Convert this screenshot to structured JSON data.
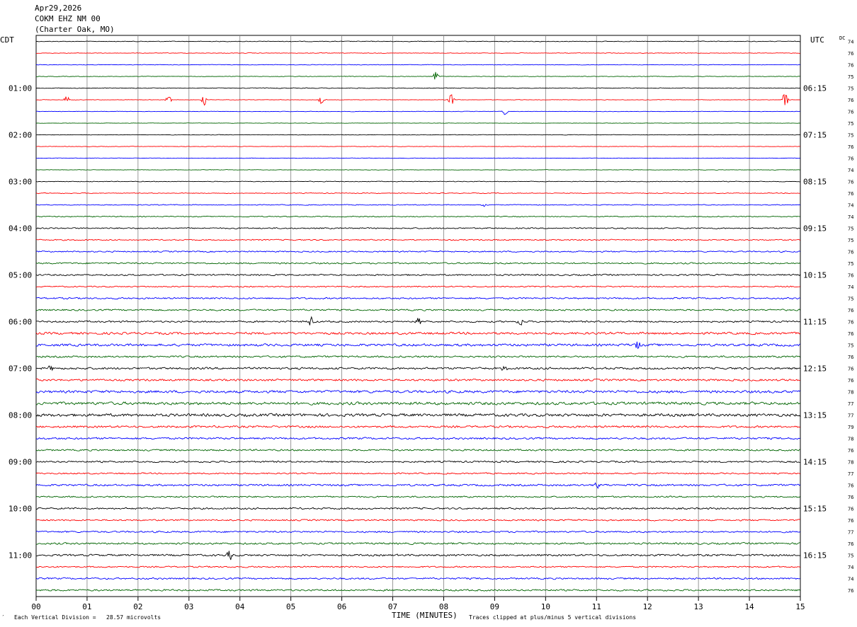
{
  "header": {
    "date": "Apr29,2026",
    "station": "COKM EHZ NM 00",
    "location": "(Charter Oak, MO)"
  },
  "axes": {
    "left_tz": "CDT",
    "right_tz": "UTC",
    "dc_label": "DC",
    "x_title": "TIME (MINUTES)"
  },
  "footer": {
    "left_mark": "′",
    "left_text": "Each Vertical Division =   28.57 microvolts",
    "right_text": "Traces clipped at plus/minus 5 vertical divisions"
  },
  "colors": {
    "line_cycle": [
      "#000000",
      "#ff0000",
      "#0000ff",
      "#006400"
    ],
    "grid": "#808080"
  },
  "chart_data": {
    "type": "line",
    "title": "",
    "xlabel": "TIME (MINUTES)",
    "x_ticks": [
      "00",
      "01",
      "02",
      "03",
      "04",
      "05",
      "06",
      "07",
      "08",
      "09",
      "10",
      "11",
      "12",
      "13",
      "14",
      "15"
    ],
    "xlim": [
      0,
      15
    ],
    "left_time_labels": [
      "01:00",
      "02:00",
      "03:00",
      "04:00",
      "05:00",
      "06:00",
      "07:00",
      "08:00",
      "09:00",
      "10:00",
      "11:00"
    ],
    "right_time_labels": [
      "06:15",
      "07:15",
      "08:15",
      "09:15",
      "10:15",
      "11:15",
      "12:15",
      "13:15",
      "14:15",
      "15:15",
      "16:15"
    ],
    "dc_offsets": [
      74,
      76,
      76,
      75,
      75,
      76,
      76,
      75,
      75,
      76,
      76,
      74,
      76,
      76,
      74,
      74,
      75,
      75,
      76,
      75,
      76,
      74,
      75,
      76,
      76,
      76,
      75,
      76,
      76,
      76,
      78,
      77,
      77,
      79,
      78,
      76,
      78,
      77,
      76,
      76,
      76,
      76,
      77,
      76,
      75,
      74,
      74,
      76
    ],
    "trace_count": 48,
    "trace_intensity": [
      0.8,
      0.7,
      0.7,
      0.7,
      0.8,
      0.6,
      0.6,
      0.5,
      0.6,
      0.6,
      0.6,
      0.6,
      0.8,
      0.9,
      1.0,
      1.1,
      1.5,
      1.4,
      1.6,
      1.8,
      1.8,
      1.5,
      1.9,
      1.9,
      2.0,
      2.7,
      2.9,
      2.2,
      2.5,
      2.4,
      3.1,
      3.4,
      3.4,
      2.5,
      2.3,
      2.0,
      2.0,
      1.7,
      2.3,
      1.8,
      2.0,
      1.8,
      2.0,
      2.2,
      2.3,
      1.7,
      2.0,
      2.1
    ],
    "events": [
      {
        "trace": 3,
        "minute": 7.85,
        "amp": 10
      },
      {
        "trace": 5,
        "minute": 0.6,
        "amp": 6
      },
      {
        "trace": 5,
        "minute": 2.6,
        "amp": 6
      },
      {
        "trace": 5,
        "minute": 3.3,
        "amp": 8
      },
      {
        "trace": 5,
        "minute": 5.6,
        "amp": 7
      },
      {
        "trace": 5,
        "minute": 8.15,
        "amp": 9
      },
      {
        "trace": 5,
        "minute": 14.7,
        "amp": 14
      },
      {
        "trace": 6,
        "minute": 9.2,
        "amp": 5
      },
      {
        "trace": 14,
        "minute": 8.8,
        "amp": 4
      },
      {
        "trace": 24,
        "minute": 5.4,
        "amp": 9
      },
      {
        "trace": 24,
        "minute": 7.5,
        "amp": 6
      },
      {
        "trace": 24,
        "minute": 9.5,
        "amp": 8
      },
      {
        "trace": 26,
        "minute": 11.8,
        "amp": 8
      },
      {
        "trace": 28,
        "minute": 0.3,
        "amp": 8
      },
      {
        "trace": 28,
        "minute": 9.2,
        "amp": 6
      },
      {
        "trace": 38,
        "minute": 11.0,
        "amp": 7
      },
      {
        "trace": 44,
        "minute": 3.8,
        "amp": 8
      }
    ]
  }
}
